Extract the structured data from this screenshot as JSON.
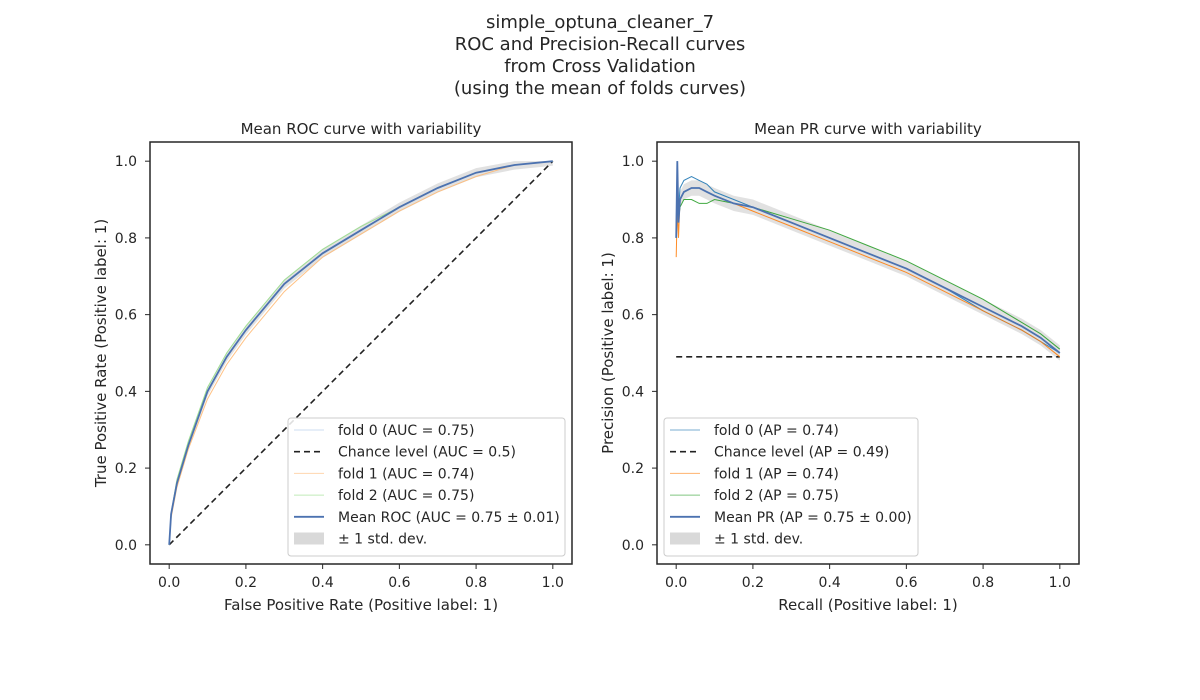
{
  "figure": {
    "title_lines": [
      "simple_optuna_cleaner_7",
      "ROC and Precision-Recall curves",
      "from Cross Validation",
      "(using the mean of folds curves)"
    ]
  },
  "colors": {
    "fold0": "#aec7e8",
    "fold1": "#ffbb78",
    "fold2": "#98df8a",
    "fold2_pr": "#2ca02c",
    "fold1_pr": "#ff7f0e",
    "fold0_pr": "#1f77b4",
    "mean": "#4c72b0",
    "chance": "#222222",
    "band": "#d9d9d9",
    "axis": "#262626"
  },
  "chart_data": [
    {
      "type": "line",
      "title": "Mean ROC curve with variability",
      "xlabel": "False Positive Rate (Positive label: 1)",
      "ylabel": "True Positive Rate (Positive label: 1)",
      "xlim": [
        -0.05,
        1.05
      ],
      "ylim": [
        -0.05,
        1.05
      ],
      "xticks": [
        "0.0",
        "0.2",
        "0.4",
        "0.6",
        "0.8",
        "1.0"
      ],
      "yticks": [
        "0.0",
        "0.2",
        "0.4",
        "0.6",
        "0.8",
        "1.0"
      ],
      "grid": false,
      "legend_position": "lower-right",
      "legend": [
        "fold 0 (AUC = 0.75)",
        "Chance level (AUC = 0.5)",
        "fold 1 (AUC = 0.74)",
        "fold 2 (AUC = 0.75)",
        "Mean ROC (AUC = 0.75 ± 0.01)",
        "± 1 std. dev."
      ],
      "chance": {
        "x": [
          0,
          1
        ],
        "y": [
          0,
          1
        ]
      },
      "series": [
        {
          "key": "fold0",
          "x": [
            0,
            0.005,
            0.02,
            0.05,
            0.1,
            0.15,
            0.2,
            0.3,
            0.4,
            0.5,
            0.6,
            0.7,
            0.8,
            0.9,
            1.0
          ],
          "y": [
            0,
            0.08,
            0.16,
            0.26,
            0.4,
            0.49,
            0.56,
            0.68,
            0.76,
            0.82,
            0.88,
            0.93,
            0.97,
            0.99,
            1.0
          ]
        },
        {
          "key": "fold1",
          "x": [
            0,
            0.005,
            0.02,
            0.05,
            0.1,
            0.15,
            0.2,
            0.3,
            0.4,
            0.5,
            0.6,
            0.7,
            0.8,
            0.9,
            1.0
          ],
          "y": [
            0,
            0.07,
            0.15,
            0.25,
            0.38,
            0.47,
            0.54,
            0.66,
            0.75,
            0.81,
            0.87,
            0.92,
            0.96,
            0.99,
            1.0
          ]
        },
        {
          "key": "fold2",
          "x": [
            0,
            0.005,
            0.02,
            0.05,
            0.1,
            0.15,
            0.2,
            0.3,
            0.4,
            0.5,
            0.6,
            0.7,
            0.8,
            0.9,
            1.0
          ],
          "y": [
            0,
            0.08,
            0.17,
            0.27,
            0.41,
            0.5,
            0.57,
            0.69,
            0.77,
            0.83,
            0.88,
            0.93,
            0.97,
            0.99,
            1.0
          ]
        },
        {
          "key": "mean",
          "x": [
            0,
            0.005,
            0.02,
            0.05,
            0.1,
            0.15,
            0.2,
            0.3,
            0.4,
            0.5,
            0.6,
            0.7,
            0.8,
            0.9,
            1.0
          ],
          "y": [
            0,
            0.08,
            0.16,
            0.26,
            0.4,
            0.49,
            0.56,
            0.68,
            0.76,
            0.82,
            0.88,
            0.93,
            0.97,
            0.99,
            1.0
          ]
        }
      ]
    },
    {
      "type": "line",
      "title": "Mean PR curve with variability",
      "xlabel": "Recall (Positive label: 1)",
      "ylabel": "Precision (Positive label: 1)",
      "xlim": [
        -0.05,
        1.05
      ],
      "ylim": [
        -0.05,
        1.05
      ],
      "xticks": [
        "0.0",
        "0.2",
        "0.4",
        "0.6",
        "0.8",
        "1.0"
      ],
      "yticks": [
        "0.0",
        "0.2",
        "0.4",
        "0.6",
        "0.8",
        "1.0"
      ],
      "grid": false,
      "legend_position": "lower-left",
      "legend": [
        "fold 0 (AP = 0.74)",
        "Chance level (AP = 0.49)",
        "fold 1 (AP = 0.74)",
        "fold 2 (AP = 0.75)",
        "Mean PR (AP = 0.75 ± 0.00)",
        "± 1 std. dev."
      ],
      "chance": {
        "x": [
          0,
          1
        ],
        "y": [
          0.49,
          0.49
        ]
      },
      "series": [
        {
          "key": "fold0",
          "x": [
            0,
            0.003,
            0.006,
            0.01,
            0.02,
            0.04,
            0.06,
            0.08,
            0.1,
            0.15,
            0.2,
            0.3,
            0.4,
            0.5,
            0.6,
            0.7,
            0.8,
            0.9,
            0.95,
            1.0
          ],
          "y": [
            0.82,
            1.0,
            0.87,
            0.93,
            0.95,
            0.96,
            0.95,
            0.94,
            0.92,
            0.9,
            0.88,
            0.84,
            0.8,
            0.76,
            0.72,
            0.67,
            0.61,
            0.56,
            0.53,
            0.5
          ]
        },
        {
          "key": "fold1",
          "x": [
            0,
            0.003,
            0.006,
            0.01,
            0.02,
            0.04,
            0.06,
            0.08,
            0.1,
            0.15,
            0.2,
            0.3,
            0.4,
            0.5,
            0.6,
            0.7,
            0.8,
            0.9,
            0.95,
            1.0
          ],
          "y": [
            0.75,
            0.88,
            0.8,
            0.9,
            0.92,
            0.93,
            0.93,
            0.92,
            0.91,
            0.89,
            0.87,
            0.83,
            0.79,
            0.75,
            0.71,
            0.66,
            0.61,
            0.56,
            0.53,
            0.49
          ]
        },
        {
          "key": "fold2",
          "x": [
            0,
            0.003,
            0.006,
            0.01,
            0.02,
            0.04,
            0.06,
            0.08,
            0.1,
            0.15,
            0.2,
            0.3,
            0.4,
            0.5,
            0.6,
            0.7,
            0.8,
            0.9,
            0.95,
            1.0
          ],
          "y": [
            0.8,
            0.97,
            0.85,
            0.88,
            0.9,
            0.9,
            0.89,
            0.89,
            0.9,
            0.89,
            0.88,
            0.85,
            0.82,
            0.78,
            0.74,
            0.69,
            0.64,
            0.58,
            0.55,
            0.51
          ]
        },
        {
          "key": "mean",
          "x": [
            0,
            0.003,
            0.006,
            0.01,
            0.02,
            0.04,
            0.06,
            0.08,
            0.1,
            0.15,
            0.2,
            0.3,
            0.4,
            0.5,
            0.6,
            0.7,
            0.8,
            0.9,
            0.95,
            1.0
          ],
          "y": [
            0.8,
            1.0,
            0.84,
            0.9,
            0.92,
            0.93,
            0.93,
            0.92,
            0.91,
            0.89,
            0.88,
            0.84,
            0.8,
            0.76,
            0.72,
            0.67,
            0.62,
            0.57,
            0.54,
            0.5
          ]
        }
      ]
    }
  ]
}
